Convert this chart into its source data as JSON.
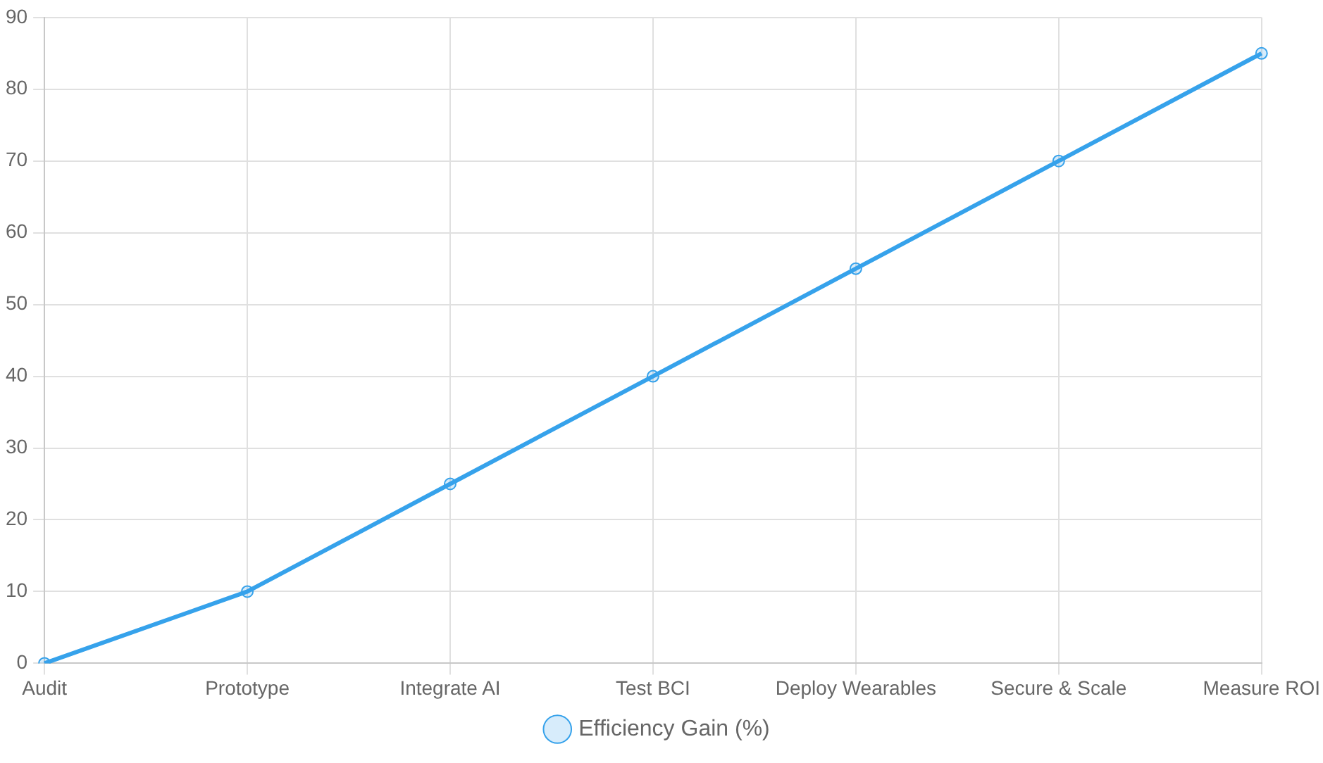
{
  "chart_data": {
    "type": "line",
    "categories": [
      "Audit",
      "Prototype",
      "Integrate AI",
      "Test BCI",
      "Deploy Wearables",
      "Secure & Scale",
      "Measure ROI"
    ],
    "series": [
      {
        "name": "Efficiency Gain (%)",
        "color": "#36a2eb",
        "values": [
          0,
          10,
          25,
          40,
          55,
          70,
          85
        ]
      }
    ],
    "ylim": [
      0,
      90
    ],
    "yticks": [
      0,
      10,
      20,
      30,
      40,
      50,
      60,
      70,
      80,
      90
    ],
    "grid": true,
    "legend": "bottom",
    "marker": "circle",
    "line_style": "solid"
  }
}
